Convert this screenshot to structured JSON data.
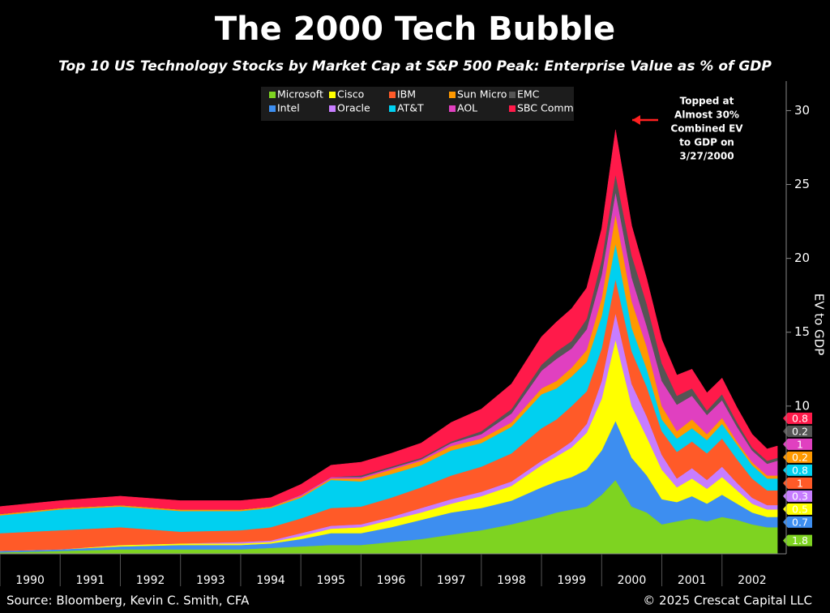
{
  "chart_data": {
    "type": "stacked_area",
    "title": "The 2000 Tech Bubble",
    "subtitle": "Top 10 US Technology Stocks by Market Cap at S&P 500 Peak: Enterprise Value as % of GDP",
    "y_label": "EV to GDP",
    "annotation": [
      "Topped at",
      "Almost 30%",
      "Combined EV",
      "to GDP on",
      "3/27/2000"
    ],
    "source": "Source: Bloomberg, Kevin C. Smith, CFA",
    "copyright": "© 2025 Crescat Capital LLC",
    "x": [
      1990,
      1991,
      1992,
      1993,
      1994,
      1994.5,
      1995,
      1995.5,
      1996,
      1996.5,
      1997,
      1997.5,
      1998,
      1998.5,
      1999,
      1999.25,
      1999.5,
      1999.75,
      2000,
      2000.23,
      2000.5,
      2000.75,
      2001,
      2001.25,
      2001.5,
      2001.75,
      2002,
      2002.25,
      2002.5,
      2002.75,
      2002.92
    ],
    "xlim": [
      1990,
      2003
    ],
    "xticks": [
      1990,
      1991,
      1992,
      1993,
      1994,
      1995,
      1996,
      1997,
      1998,
      1999,
      2000,
      2001,
      2002
    ],
    "ylim": [
      0,
      32
    ],
    "yticks": [
      10,
      15,
      20,
      25,
      30
    ],
    "series": [
      {
        "name": "Microsoft",
        "color": "#7ed321",
        "values": [
          0.1,
          0.2,
          0.3,
          0.3,
          0.3,
          0.4,
          0.5,
          0.6,
          0.6,
          0.8,
          1.0,
          1.3,
          1.6,
          2.0,
          2.5,
          2.8,
          3.0,
          3.2,
          4.0,
          5.0,
          3.2,
          2.8,
          2.0,
          2.2,
          2.4,
          2.2,
          2.5,
          2.3,
          2.0,
          1.8,
          1.8
        ]
      },
      {
        "name": "Intel",
        "color": "#3d8ef0",
        "values": [
          0.1,
          0.1,
          0.2,
          0.3,
          0.3,
          0.3,
          0.5,
          0.8,
          0.8,
          1.0,
          1.3,
          1.5,
          1.5,
          1.6,
          2.0,
          2.1,
          2.2,
          2.5,
          3.0,
          4.0,
          3.3,
          2.5,
          1.7,
          1.3,
          1.5,
          1.2,
          1.5,
          1.1,
          0.8,
          0.7,
          0.7
        ]
      },
      {
        "name": "Cisco",
        "color": "#ffff00",
        "values": [
          0,
          0,
          0.1,
          0.1,
          0.1,
          0.1,
          0.2,
          0.3,
          0.4,
          0.5,
          0.5,
          0.6,
          0.8,
          1.0,
          1.5,
          1.7,
          2.0,
          2.5,
          3.5,
          5.5,
          3.5,
          2.6,
          2.0,
          1.0,
          1.2,
          1.0,
          1.2,
          0.9,
          0.6,
          0.5,
          0.5
        ]
      },
      {
        "name": "Oracle",
        "color": "#c77dff",
        "values": [
          0,
          0,
          0,
          0,
          0.1,
          0.1,
          0.2,
          0.2,
          0.2,
          0.2,
          0.3,
          0.3,
          0.3,
          0.3,
          0.3,
          0.3,
          0.4,
          0.6,
          1.2,
          1.8,
          1.5,
          1.4,
          1.0,
          0.6,
          0.7,
          0.6,
          0.7,
          0.5,
          0.4,
          0.3,
          0.3
        ]
      },
      {
        "name": "IBM",
        "color": "#ff5a28",
        "values": [
          1.2,
          1.3,
          1.2,
          0.8,
          0.8,
          0.9,
          1.0,
          1.2,
          1.2,
          1.3,
          1.4,
          1.6,
          1.7,
          1.9,
          2.2,
          2.2,
          2.4,
          2.2,
          2.2,
          2.3,
          2.2,
          2.0,
          1.6,
          1.8,
          1.8,
          1.8,
          1.9,
          1.6,
          1.3,
          1.0,
          1.0
        ]
      },
      {
        "name": "AT&T",
        "color": "#00d0f0",
        "values": [
          1.2,
          1.4,
          1.4,
          1.4,
          1.3,
          1.3,
          1.4,
          1.9,
          1.7,
          1.6,
          1.5,
          1.7,
          1.6,
          1.8,
          2.3,
          2.1,
          2.0,
          2.0,
          2.2,
          2.4,
          1.6,
          1.2,
          0.8,
          0.9,
          0.9,
          0.9,
          1.0,
          1.0,
          0.9,
          0.8,
          0.8
        ]
      },
      {
        "name": "Sun Micro",
        "color": "#ff9900",
        "values": [
          0.1,
          0.1,
          0.1,
          0.1,
          0.1,
          0.1,
          0.1,
          0.1,
          0.2,
          0.3,
          0.3,
          0.3,
          0.3,
          0.3,
          0.4,
          0.5,
          0.6,
          0.8,
          1.2,
          2.0,
          1.8,
          1.5,
          0.9,
          0.5,
          0.6,
          0.4,
          0.4,
          0.2,
          0.2,
          0.2,
          0.2
        ]
      },
      {
        "name": "AOL",
        "color": "#e040c0",
        "values": [
          0,
          0,
          0,
          0,
          0,
          0,
          0.1,
          0.1,
          0.1,
          0.1,
          0.1,
          0.2,
          0.3,
          0.6,
          1.2,
          1.5,
          1.3,
          1.4,
          1.6,
          1.5,
          1.6,
          1.4,
          1.7,
          1.8,
          1.6,
          1.3,
          1.2,
          1.0,
          0.8,
          0.8,
          1.0
        ]
      },
      {
        "name": "EMC",
        "color": "#555555",
        "values": [
          0,
          0,
          0,
          0,
          0,
          0,
          0,
          0,
          0.1,
          0.1,
          0.1,
          0.1,
          0.2,
          0.3,
          0.4,
          0.5,
          0.5,
          0.7,
          1.0,
          1.2,
          1.5,
          1.5,
          1.2,
          0.6,
          0.5,
          0.3,
          0.4,
          0.3,
          0.2,
          0.2,
          0.2
        ]
      },
      {
        "name": "SBC Comm",
        "color": "#ff1a4a",
        "values": [
          0.5,
          0.5,
          0.6,
          0.6,
          0.6,
          0.6,
          0.7,
          0.8,
          0.9,
          0.9,
          1.0,
          1.3,
          1.5,
          1.7,
          1.9,
          2.0,
          2.2,
          2.1,
          2.1,
          3.0,
          2.0,
          1.7,
          1.6,
          1.4,
          1.3,
          1.2,
          1.1,
          1.0,
          0.9,
          0.8,
          0.8
        ]
      }
    ]
  }
}
